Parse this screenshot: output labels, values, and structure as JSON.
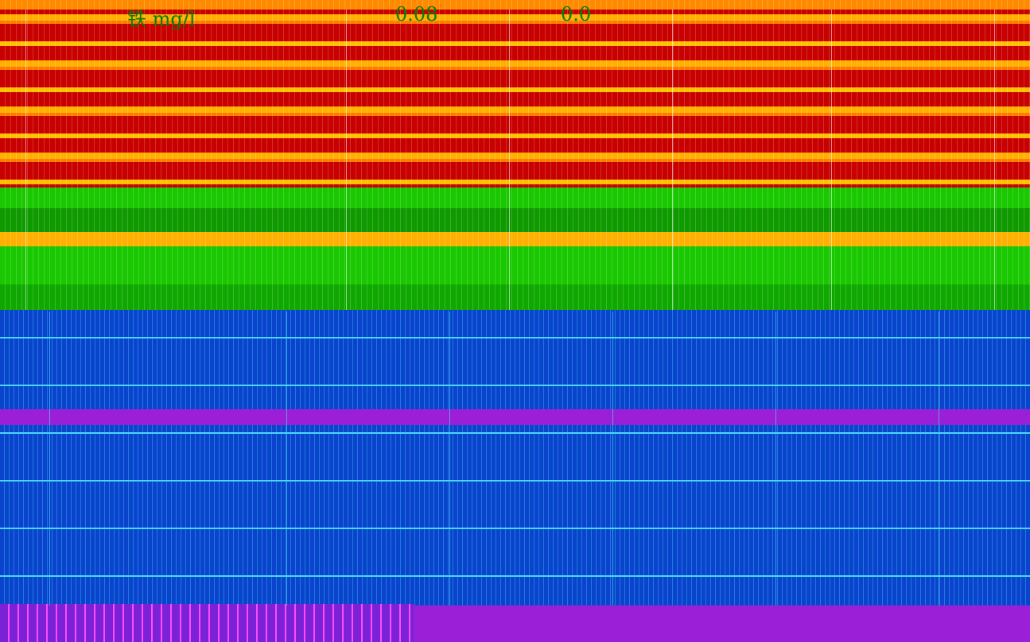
{
  "visible_text": {
    "top_left_fragment": "铁 mg/l",
    "top_value_1": "0.08",
    "top_value_2": "0.0"
  },
  "palette": {
    "warm_red": "#c80000",
    "warm_yellow": "#ffb000",
    "warm_orange": "#ff8a00",
    "green": "#19c800",
    "blue": "#0a44cc",
    "cyan": "#49d6ff",
    "purple": "#9b1fd6",
    "magenta": "#ff4bff"
  }
}
